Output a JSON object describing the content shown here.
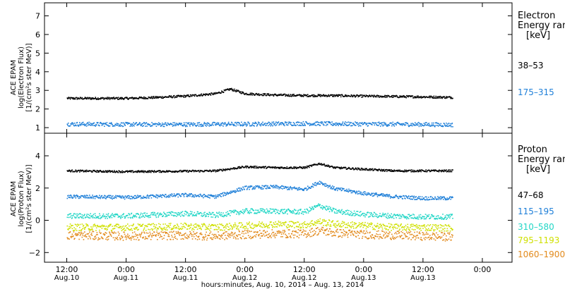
{
  "chart_data": [
    {
      "type": "scatter",
      "ylabel_lines": [
        "ACE EPAM",
        "log(Electron Flux)",
        "[1/(cm²s ster MeV)]"
      ],
      "ylim": [
        0.7,
        7.7
      ],
      "yticks": [
        1,
        2,
        3,
        4,
        5,
        6,
        7
      ],
      "legend": {
        "title_lines": [
          "Electron",
          "Energy ran",
          "[keV]"
        ]
      },
      "series": [
        {
          "name": "38–53",
          "color": "#000000",
          "x": [
            -12,
            0,
            6,
            12,
            18,
            21,
            24,
            30,
            36,
            42,
            48,
            54,
            60,
            66
          ],
          "y": [
            2.6,
            2.6,
            2.65,
            2.72,
            2.85,
            3.1,
            2.85,
            2.78,
            2.75,
            2.75,
            2.72,
            2.7,
            2.68,
            2.65
          ]
        },
        {
          "name": "175–315",
          "color": "#1e7fd8",
          "x": [
            -12,
            0,
            12,
            24,
            36,
            48,
            60,
            66
          ],
          "y": [
            1.22,
            1.2,
            1.2,
            1.22,
            1.25,
            1.22,
            1.2,
            1.18
          ]
        }
      ]
    },
    {
      "type": "scatter",
      "ylabel_lines": [
        "ACE EPAM",
        "log(Proton Flux)",
        "[1/(cm²s ster MeV)]"
      ],
      "ylim": [
        -2.6,
        5.4
      ],
      "yticks": [
        -2,
        0,
        2,
        4
      ],
      "legend": {
        "title_lines": [
          "Proton",
          "Energy ran",
          "[keV]"
        ]
      },
      "series": [
        {
          "name": "47–68",
          "color": "#000000",
          "x": [
            -12,
            0,
            12,
            18,
            24,
            30,
            36,
            39,
            42,
            48,
            54,
            60,
            66
          ],
          "y": [
            3.1,
            3.05,
            3.08,
            3.1,
            3.35,
            3.3,
            3.3,
            3.55,
            3.3,
            3.2,
            3.1,
            3.1,
            3.1
          ]
        },
        {
          "name": "115–195",
          "color": "#1e7fd8",
          "x": [
            -12,
            0,
            12,
            18,
            24,
            30,
            36,
            39,
            42,
            48,
            54,
            60,
            66
          ],
          "y": [
            1.5,
            1.45,
            1.6,
            1.5,
            2.05,
            2.1,
            1.95,
            2.4,
            2.0,
            1.7,
            1.5,
            1.4,
            1.4
          ]
        },
        {
          "name": "310–580",
          "color": "#22d6c6",
          "x": [
            -12,
            0,
            12,
            18,
            24,
            30,
            36,
            39,
            42,
            48,
            54,
            60,
            66
          ],
          "y": [
            0.3,
            0.3,
            0.45,
            0.35,
            0.6,
            0.6,
            0.55,
            0.95,
            0.6,
            0.4,
            0.3,
            0.25,
            0.25
          ]
        },
        {
          "name": "795–1193",
          "color": "#cfe000",
          "x": [
            -12,
            0,
            12,
            18,
            24,
            30,
            36,
            39,
            42,
            48,
            54,
            60,
            66
          ],
          "y": [
            -0.4,
            -0.4,
            -0.35,
            -0.4,
            -0.3,
            -0.2,
            -0.25,
            -0.05,
            -0.2,
            -0.3,
            -0.4,
            -0.4,
            -0.45
          ]
        },
        {
          "name": "1060–1900",
          "color": "#e28a1c",
          "x": [
            -12,
            0,
            12,
            18,
            24,
            30,
            36,
            39,
            42,
            48,
            54,
            60,
            66
          ],
          "y": [
            -0.9,
            -0.95,
            -0.9,
            -0.95,
            -0.85,
            -0.8,
            -0.8,
            -0.6,
            -0.75,
            -0.85,
            -0.9,
            -0.95,
            -1.0
          ]
        }
      ]
    }
  ],
  "x_axis": {
    "ticks": [
      -12,
      0,
      12,
      24,
      36,
      48,
      60,
      72
    ],
    "tick_labels_time": [
      "12:00",
      "0:00",
      "12:00",
      "0:00",
      "12:00",
      "0:00",
      "12:00",
      "0:00"
    ],
    "tick_labels_date": [
      "Aug.10",
      "Aug.11",
      "Aug.11",
      "Aug.12",
      "Aug.12",
      "Aug.13",
      "Aug.13",
      ""
    ],
    "xlim": [
      -16.5,
      78
    ],
    "xlabel": "hours:minutes, Aug. 10, 2014 – Aug. 13, 2014"
  }
}
